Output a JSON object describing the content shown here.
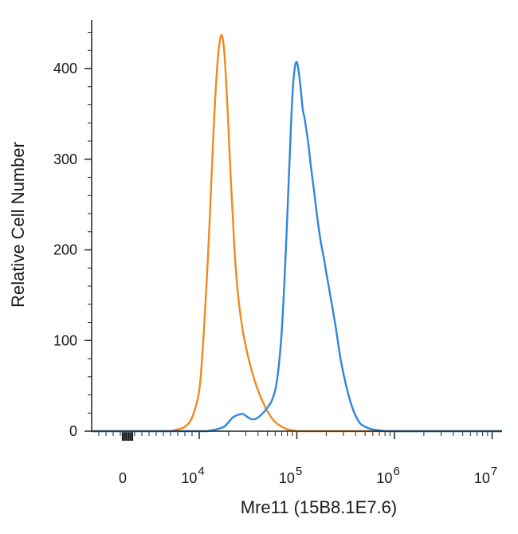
{
  "chart_data": {
    "type": "line",
    "title": "",
    "xlabel": "Mre11 (15B8.1E7.6)",
    "ylabel": "Relative Cell Number",
    "x_scale": "biexponential (linear near 0, logarithmic above 10^4)",
    "xlim": [
      -2000,
      10000000
    ],
    "ylim": [
      0,
      450
    ],
    "grid": false,
    "legend": "none",
    "x_ticks": [
      {
        "base": "0",
        "exp": "",
        "value": 0
      },
      {
        "base": "10",
        "exp": "4",
        "value": 10000
      },
      {
        "base": "10",
        "exp": "5",
        "value": 100000
      },
      {
        "base": "10",
        "exp": "6",
        "value": 1000000
      },
      {
        "base": "10",
        "exp": "7",
        "value": 10000000
      }
    ],
    "y_ticks": [
      0,
      100,
      200,
      300,
      400
    ],
    "series": [
      {
        "color": "#f08a1c",
        "x": [
          6000,
          7000,
          8000,
          9000,
          10000,
          11000,
          12000,
          13000,
          14000,
          15000,
          16000,
          17000,
          18000,
          19000,
          20000,
          21000,
          22000,
          23000,
          25000,
          28000,
          32000,
          36000,
          40000,
          45000,
          50000,
          55000,
          60000,
          70000,
          80000,
          100000
        ],
        "y": [
          0,
          2,
          5,
          15,
          45,
          100,
          170,
          250,
          330,
          390,
          425,
          437,
          420,
          380,
          330,
          280,
          240,
          200,
          150,
          110,
          80,
          60,
          45,
          32,
          22,
          15,
          10,
          5,
          2,
          0
        ]
      },
      {
        "color": "#2e86de",
        "x": [
          12000,
          15000,
          18000,
          20000,
          22000,
          25000,
          28000,
          30000,
          33000,
          36000,
          40000,
          45000,
          50000,
          55000,
          60000,
          65000,
          70000,
          75000,
          80000,
          85000,
          90000,
          95000,
          100000,
          105000,
          110000,
          115000,
          120000,
          130000,
          140000,
          150000,
          160000,
          175000,
          190000,
          200000,
          220000,
          250000,
          280000,
          320000,
          360000,
          400000,
          450000,
          500000,
          550000,
          600000,
          700000,
          800000
        ],
        "y": [
          0,
          2,
          5,
          10,
          15,
          18,
          19,
          17,
          14,
          13,
          15,
          20,
          26,
          33,
          45,
          70,
          110,
          170,
          240,
          310,
          370,
          400,
          407,
          395,
          375,
          355,
          345,
          320,
          290,
          265,
          240,
          210,
          190,
          175,
          150,
          115,
          80,
          50,
          30,
          17,
          8,
          5,
          3,
          2,
          1,
          0
        ]
      }
    ]
  }
}
